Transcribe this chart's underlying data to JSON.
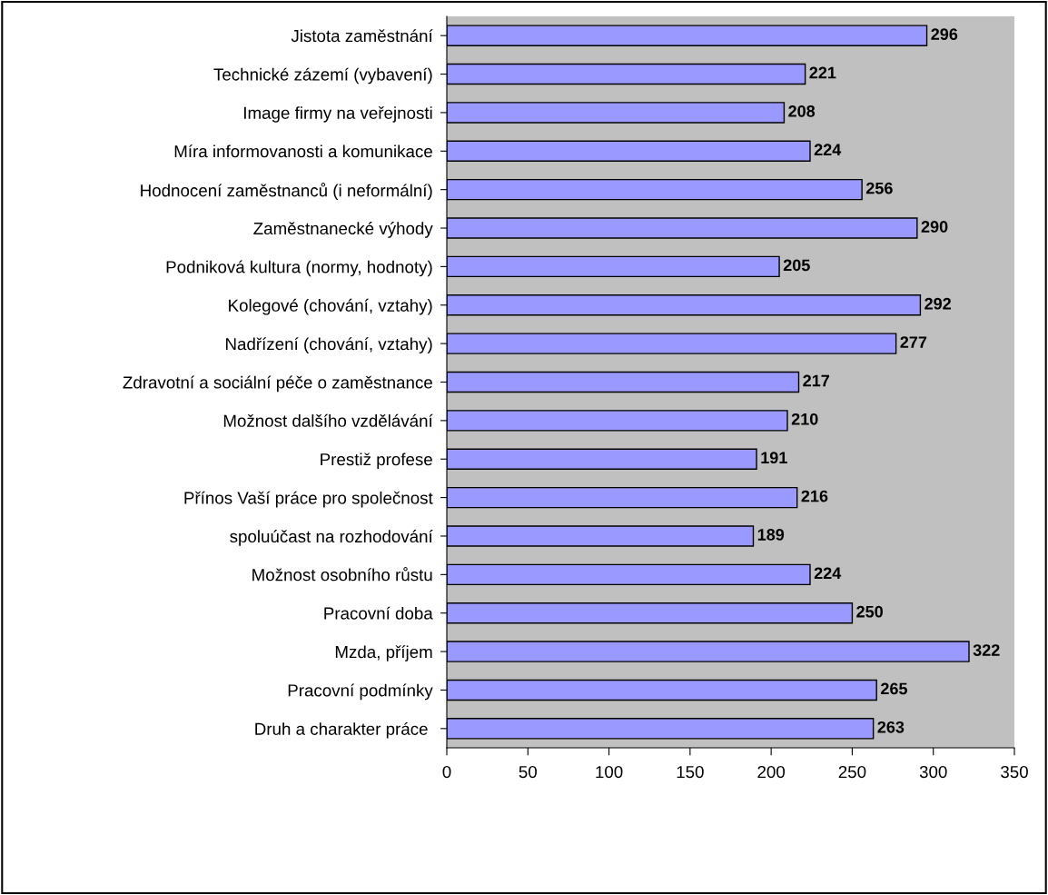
{
  "chart_data": {
    "type": "bar",
    "orientation": "horizontal",
    "categories": [
      "Jistota zaměstnání",
      "Technické zázemí (vybavení)",
      "Image firmy na veřejnosti",
      "Míra informovanosti a komunikace",
      "Hodnocení zaměstnanců (i neformální)",
      "Zaměstnanecké výhody",
      "Podniková kultura (normy, hodnoty)",
      "Kolegové (chování, vztahy)",
      "Nadřízení (chování, vztahy)",
      "Zdravotní a sociální péče o zaměstnance",
      "Možnost dalšího vzdělávání",
      "Prestiž profese",
      "Přínos Vaší práce pro společnost",
      "spoluúčast na rozhodování",
      "Možnost osobního růstu",
      "Pracovní doba",
      "Mzda, příjem",
      "Pracovní podmínky",
      "Druh a charakter práce "
    ],
    "values": [
      296,
      221,
      208,
      224,
      256,
      290,
      205,
      292,
      277,
      217,
      210,
      191,
      216,
      189,
      224,
      250,
      322,
      265,
      263
    ],
    "color": "#9999ff",
    "xlim": [
      0,
      350
    ],
    "xticks": [
      0,
      50,
      100,
      150,
      200,
      250,
      300,
      350
    ],
    "data_labels": true,
    "grid": false
  }
}
